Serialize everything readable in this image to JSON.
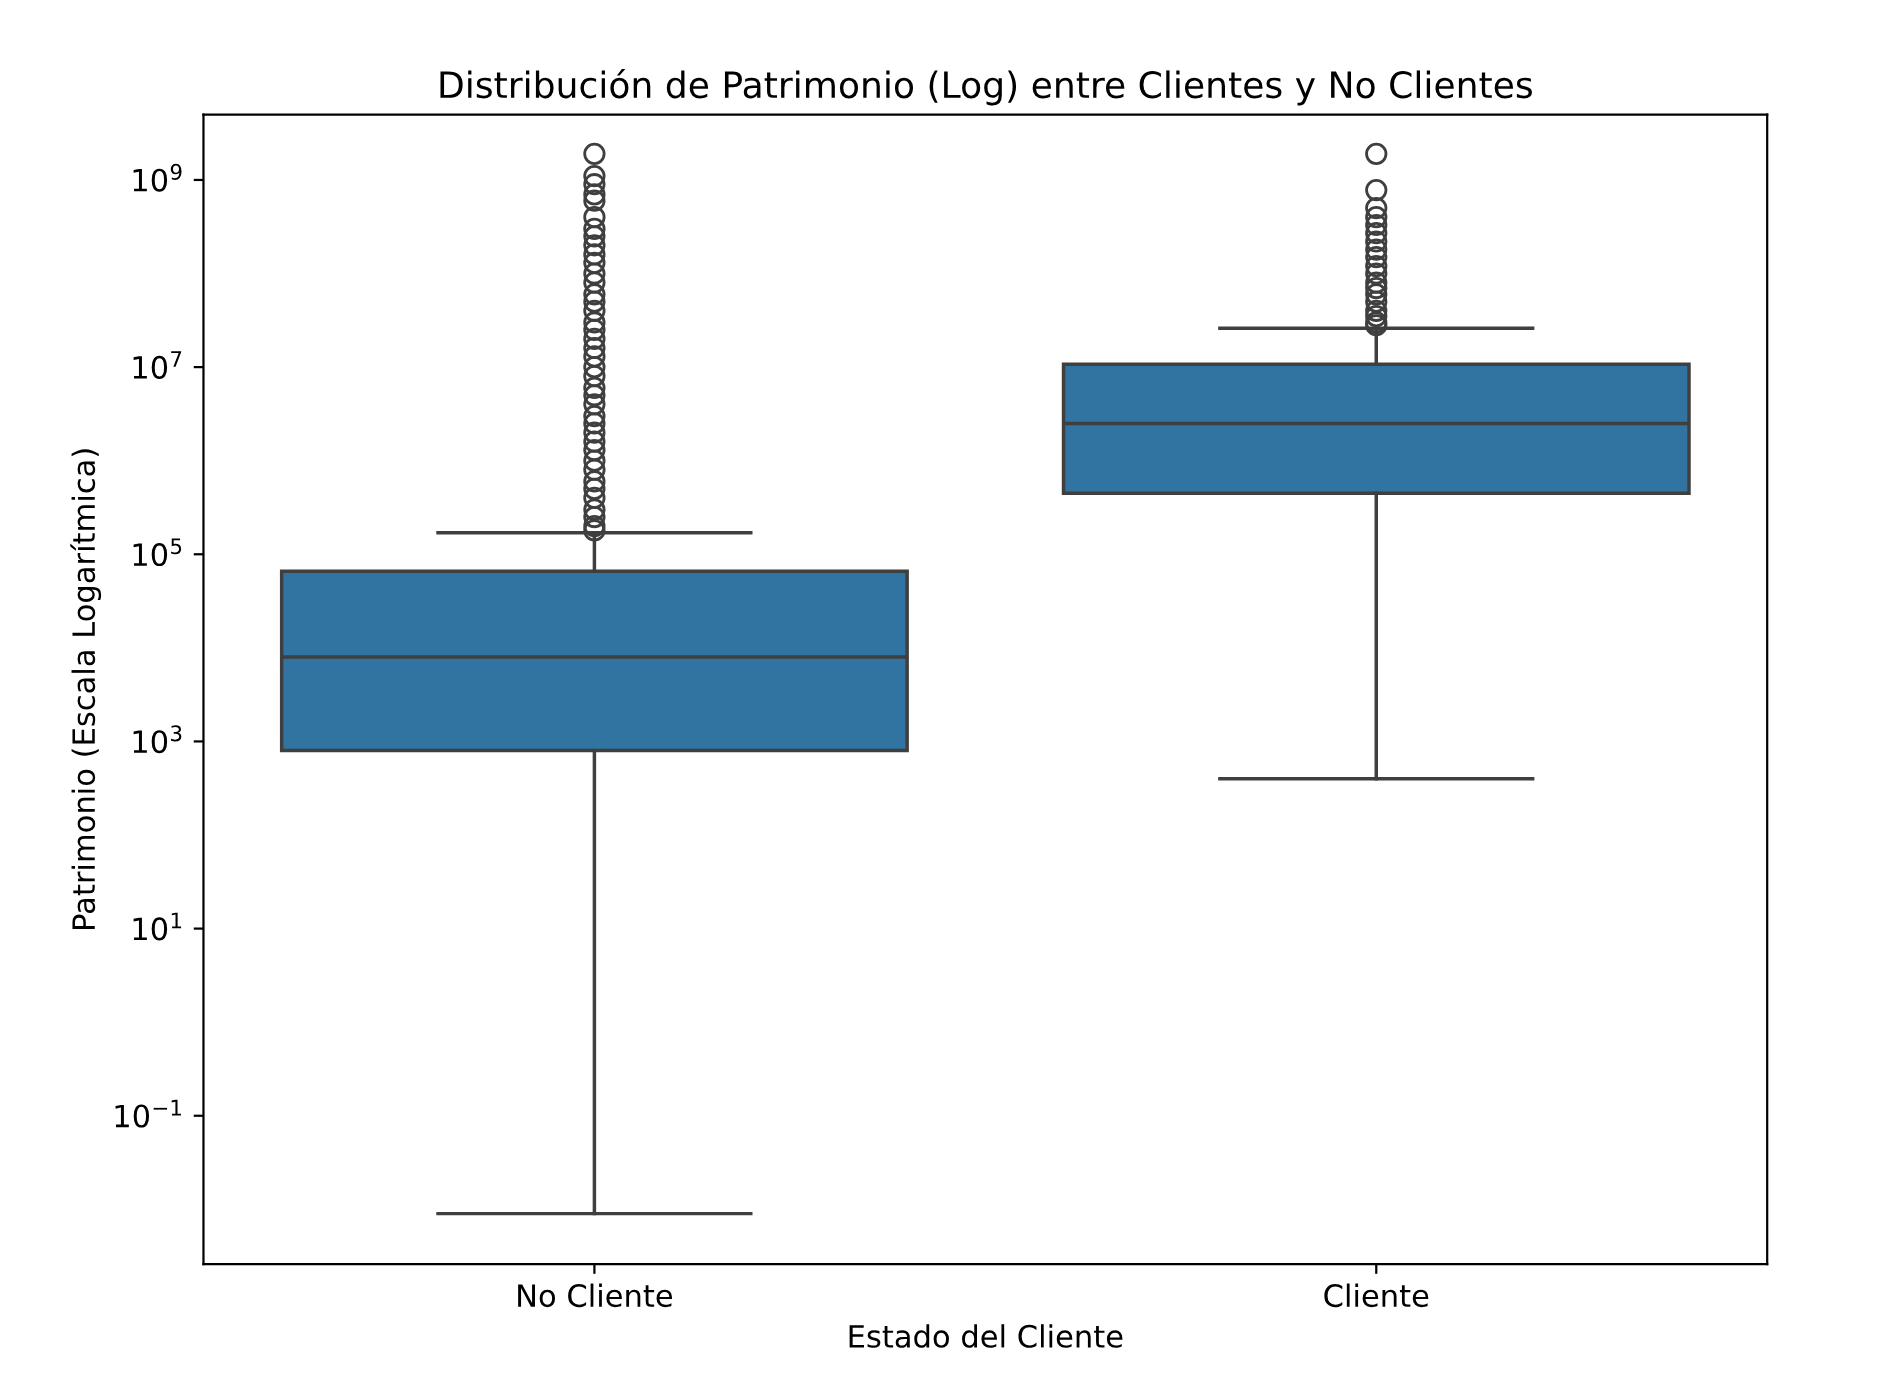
{
  "chart_data": {
    "type": "box",
    "title": "Distribución de Patrimonio (Log) entre Clientes y No Clientes",
    "xlabel": "Estado del Cliente",
    "ylabel": "Patrimonio (Escala Logarítmica)",
    "categories": [
      "No Cliente",
      "Cliente"
    ],
    "log": "y",
    "ylim": [
      0.0026,
      5000000000
    ],
    "yticks": [
      {
        "value": 0.1,
        "label": "10$^{−1}$"
      },
      {
        "value": 10,
        "label": "10$^{1}$"
      },
      {
        "value": 1000,
        "label": "10$^{3}$"
      },
      {
        "value": 100000,
        "label": "10$^{5}$"
      },
      {
        "value": 10000000,
        "label": "10$^{7}$"
      },
      {
        "value": 1000000000,
        "label": "10$^{9}$"
      }
    ],
    "grid": false,
    "series": [
      {
        "color": "#3274a1",
        "boxes": [
          {
            "low": 0.009,
            "q1": 800,
            "median": 8000,
            "q3": 66000,
            "high": 170000,
            "outliers": [
              180000,
              200000,
              250000,
              300000,
              400000,
              500000,
              600000,
              800000,
              1000000,
              1300000,
              1600000,
              2000000,
              2500000,
              3000000,
              4000000,
              5000000,
              6000000,
              8000000,
              10000000,
              13000000,
              16000000,
              20000000,
              25000000,
              30000000,
              40000000,
              50000000,
              60000000,
              80000000,
              100000000,
              130000000,
              160000000,
              200000000,
              250000000,
              300000000,
              400000000,
              600000000,
              700000000,
              900000000,
              1100000000,
              1900000000
            ]
          },
          {
            "low": 400,
            "q1": 450000,
            "median": 2500000,
            "q3": 10700000,
            "high": 26000000,
            "outliers": [
              28000000,
              30000000,
              35000000,
              40000000,
              50000000,
              60000000,
              70000000,
              80000000,
              100000000,
              120000000,
              150000000,
              180000000,
              220000000,
              270000000,
              330000000,
              400000000,
              500000000,
              780000000,
              1900000000
            ]
          }
        ]
      }
    ]
  }
}
